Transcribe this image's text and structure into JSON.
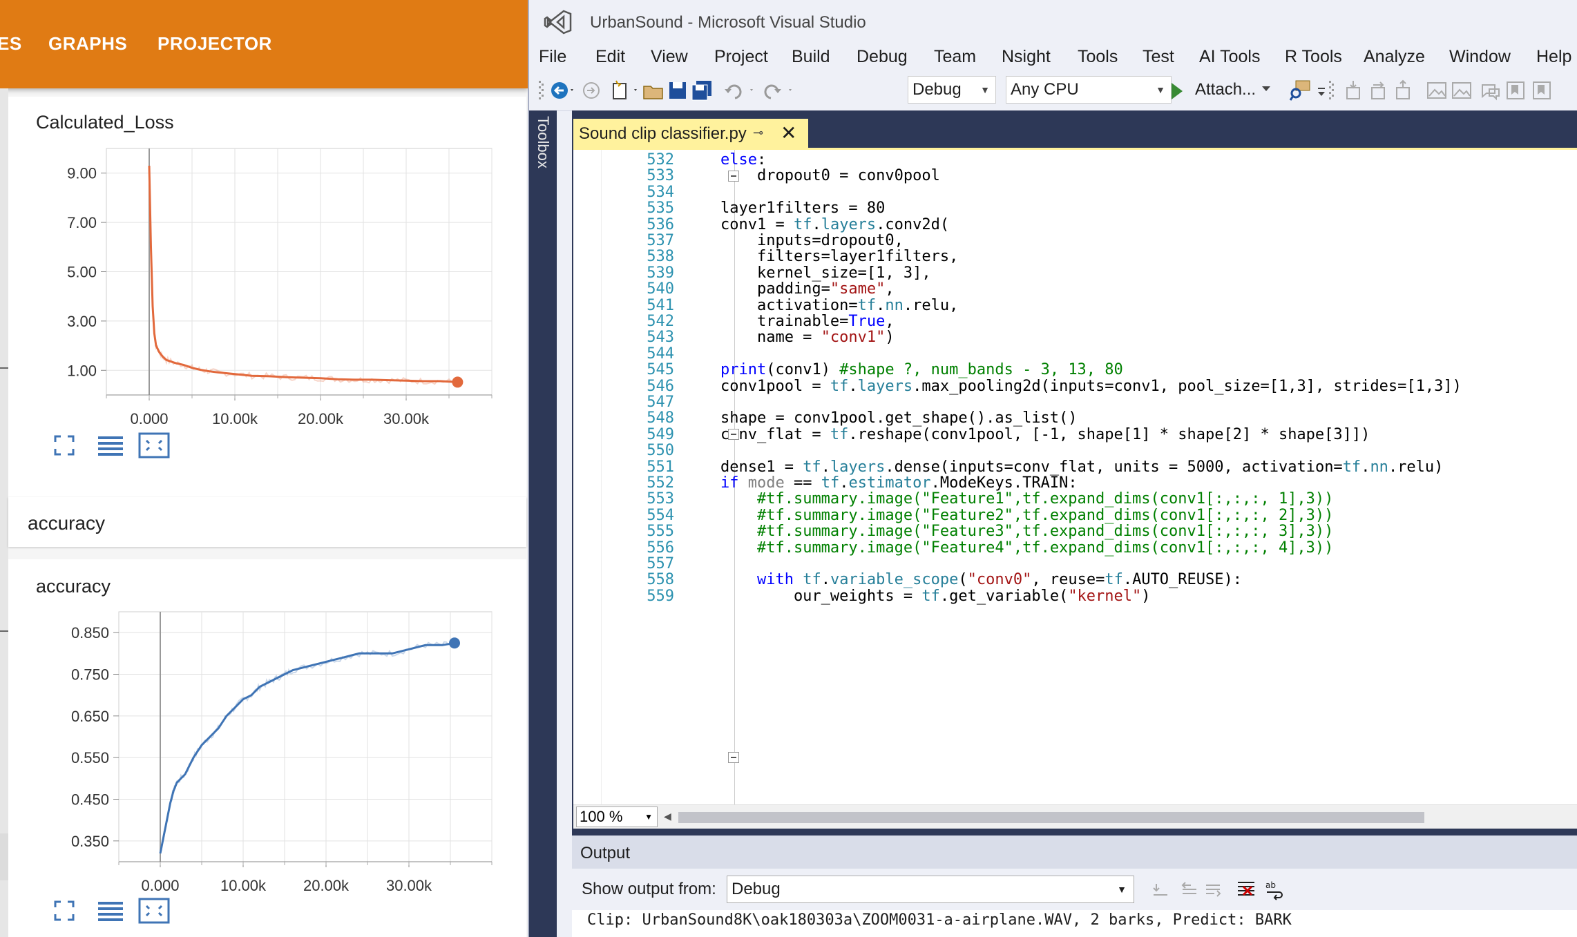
{
  "tensorboard": {
    "tabs": [
      "ES",
      "GRAPHS",
      "PROJECTOR"
    ],
    "loss_card": {
      "title": "Calculated_Loss"
    },
    "group_header": "accuracy",
    "accuracy_card": {
      "title": "accuracy"
    },
    "accent_color": "#e07b14"
  },
  "chart_data": [
    {
      "type": "line",
      "title": "Calculated_Loss",
      "x_ticks": [
        "0.000",
        "10.00k",
        "20.00k",
        "30.00k"
      ],
      "y_ticks": [
        "9.00",
        "7.00",
        "5.00",
        "3.00",
        "1.00"
      ],
      "xlim": [
        -5000,
        40000
      ],
      "ylim": [
        0,
        10
      ],
      "series": [
        {
          "color": "#e2693c",
          "x": [
            0,
            200,
            400,
            600,
            800,
            1200,
            1600,
            2000,
            3000,
            4000,
            5000,
            6000,
            7000,
            8000,
            10000,
            12000,
            14000,
            16000,
            18000,
            20000,
            22000,
            24000,
            26000,
            28000,
            30000,
            32000,
            34000,
            36000
          ],
          "y": [
            9.3,
            6.0,
            3.6,
            2.5,
            2.0,
            1.72,
            1.55,
            1.42,
            1.3,
            1.22,
            1.1,
            1.02,
            0.96,
            0.92,
            0.85,
            0.78,
            0.76,
            0.72,
            0.7,
            0.68,
            0.64,
            0.62,
            0.62,
            0.6,
            0.58,
            0.56,
            0.56,
            0.52
          ]
        }
      ]
    },
    {
      "type": "line",
      "title": "accuracy",
      "x_ticks": [
        "0.000",
        "10.00k",
        "20.00k",
        "30.00k"
      ],
      "y_ticks": [
        "0.850",
        "0.750",
        "0.650",
        "0.550",
        "0.450",
        "0.350"
      ],
      "xlim": [
        -5000,
        40000
      ],
      "ylim": [
        0.3,
        0.9
      ],
      "series": [
        {
          "color": "#3f74b5",
          "x": [
            0,
            400,
            800,
            1200,
            1600,
            2000,
            3000,
            4000,
            5000,
            6000,
            7000,
            8000,
            9000,
            10000,
            11000,
            12000,
            13000,
            14000,
            15000,
            16000,
            18000,
            20000,
            22000,
            24000,
            26000,
            28000,
            30000,
            32000,
            34000,
            35500
          ],
          "y": [
            0.32,
            0.36,
            0.4,
            0.44,
            0.47,
            0.49,
            0.51,
            0.55,
            0.58,
            0.6,
            0.62,
            0.65,
            0.67,
            0.69,
            0.7,
            0.72,
            0.73,
            0.74,
            0.75,
            0.76,
            0.77,
            0.78,
            0.79,
            0.8,
            0.8,
            0.8,
            0.81,
            0.82,
            0.82,
            0.825
          ]
        }
      ]
    }
  ],
  "vs": {
    "window_title": "UrbanSound - Microsoft Visual Studio",
    "menu": [
      "File",
      "Edit",
      "View",
      "Project",
      "Build",
      "Debug",
      "Team",
      "Nsight",
      "Tools",
      "Test",
      "AI Tools",
      "R Tools",
      "Analyze",
      "Window",
      "Help"
    ],
    "config_combo": "Debug",
    "platform_combo": "Any CPU",
    "attach_label": "Attach...",
    "toolbox_label": "Toolbox",
    "tab_label": "Sound clip classifier.py",
    "zoom": "100 %",
    "output_title": "Output",
    "show_output_label": "Show output from:",
    "output_source": "Debug",
    "output_line": "Clip: UrbanSound8K\\oak180303a\\ZOOM0031-a-airplane.WAV, 2 barks, Predict: BARK",
    "line_numbers": [
      "532",
      "533",
      "534",
      "535",
      "536",
      "537",
      "538",
      "539",
      "540",
      "541",
      "542",
      "543",
      "544",
      "545",
      "546",
      "547",
      "548",
      "549",
      "550",
      "551",
      "552",
      "553",
      "554",
      "555",
      "556",
      "557",
      "558",
      "559"
    ],
    "code_lines": [
      "    else:",
      "        dropout0 = conv0pool",
      "",
      "    layer1filters = 80",
      "    conv1 = tf.layers.conv2d(",
      "        inputs=dropout0,",
      "        filters=layer1filters,",
      "        kernel_size=[1, 3],",
      "        padding=\"same\",",
      "        activation=tf.nn.relu,",
      "        trainable=True,",
      "        name = \"conv1\")",
      "",
      "    print(conv1) #shape ?, num_bands - 3, 13, 80",
      "    conv1pool = tf.layers.max_pooling2d(inputs=conv1, pool_size=[1,3], strides=[1,3])",
      "",
      "    shape = conv1pool.get_shape().as_list()",
      "    conv_flat = tf.reshape(conv1pool, [-1, shape[1] * shape[2] * shape[3]])",
      "",
      "    dense1 = tf.layers.dense(inputs=conv_flat, units = 5000, activation=tf.nn.relu)",
      "    if mode == tf.estimator.ModeKeys.TRAIN:",
      "        #tf.summary.image(\"Feature1\",tf.expand_dims(conv1[:,:,:, 1],3))",
      "        #tf.summary.image(\"Feature2\",tf.expand_dims(conv1[:,:,:, 2],3))",
      "        #tf.summary.image(\"Feature3\",tf.expand_dims(conv1[:,:,:, 3],3))",
      "        #tf.summary.image(\"Feature4\",tf.expand_dims(conv1[:,:,:, 4],3))",
      "",
      "        with tf.variable_scope(\"conv0\", reuse=tf.AUTO_REUSE):",
      "            our_weights = tf.get_variable(\"kernel\")"
    ]
  }
}
